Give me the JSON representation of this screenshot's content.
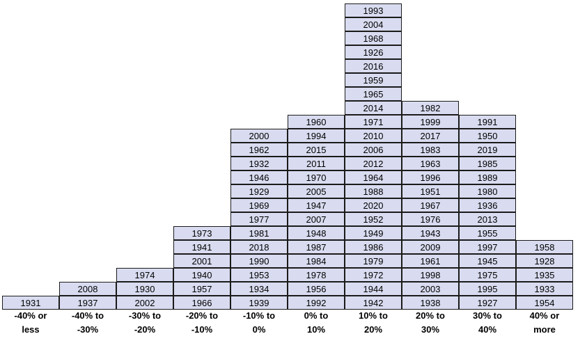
{
  "chart_data": {
    "type": "table",
    "categories": [
      "-40% or less",
      "-40% to -30%",
      "-30% to -20%",
      "-20% to -10%",
      "-10% to 0%",
      "0% to 10%",
      "10% to 20%",
      "20% to 30%",
      "30% to 40%",
      "40% or more"
    ],
    "category_lines": [
      [
        "-40% or",
        "less"
      ],
      [
        "-40% to",
        "-30%"
      ],
      [
        "-30% to",
        "-20%"
      ],
      [
        "-20% to",
        "-10%"
      ],
      [
        "-10% to",
        "0%"
      ],
      [
        "0% to",
        "10%"
      ],
      [
        "10% to",
        "20%"
      ],
      [
        "20% to",
        "30%"
      ],
      [
        "30% to",
        "40%"
      ],
      [
        "40% or",
        "more"
      ]
    ],
    "columns": [
      [
        "1931"
      ],
      [
        "2008",
        "1937"
      ],
      [
        "1974",
        "1930",
        "2002"
      ],
      [
        "1973",
        "1941",
        "2001",
        "1940",
        "1957",
        "1966"
      ],
      [
        "2000",
        "1962",
        "1932",
        "1946",
        "1929",
        "1969",
        "1977",
        "1981",
        "2018",
        "1990",
        "1953",
        "1934",
        "1939"
      ],
      [
        "1960",
        "1994",
        "2015",
        "2011",
        "1970",
        "2005",
        "1947",
        "2007",
        "1948",
        "1987",
        "1984",
        "1978",
        "1956",
        "1992"
      ],
      [
        "1993",
        "2004",
        "1968",
        "1926",
        "2016",
        "1959",
        "1965",
        "2014",
        "1971",
        "2010",
        "2006",
        "2012",
        "1964",
        "1988",
        "2020",
        "1952",
        "1949",
        "1986",
        "1979",
        "1972",
        "1944",
        "1942"
      ],
      [
        "1982",
        "1999",
        "2017",
        "1983",
        "1963",
        "1996",
        "1951",
        "1967",
        "1976",
        "1943",
        "2009",
        "1961",
        "1998",
        "2003",
        "1938"
      ],
      [
        "1991",
        "1950",
        "2019",
        "1985",
        "1989",
        "1980",
        "1936",
        "2013",
        "1955",
        "1997",
        "1945",
        "1975",
        "1995",
        "1927"
      ],
      [
        "1958",
        "1928",
        "1935",
        "1933",
        "1954"
      ]
    ],
    "counts": [
      1,
      2,
      3,
      6,
      13,
      14,
      22,
      15,
      14,
      5
    ],
    "colors": {
      "cell_fill": "#d9dcf0",
      "cell_border": "#1a1a1a",
      "text": "#000000"
    }
  }
}
